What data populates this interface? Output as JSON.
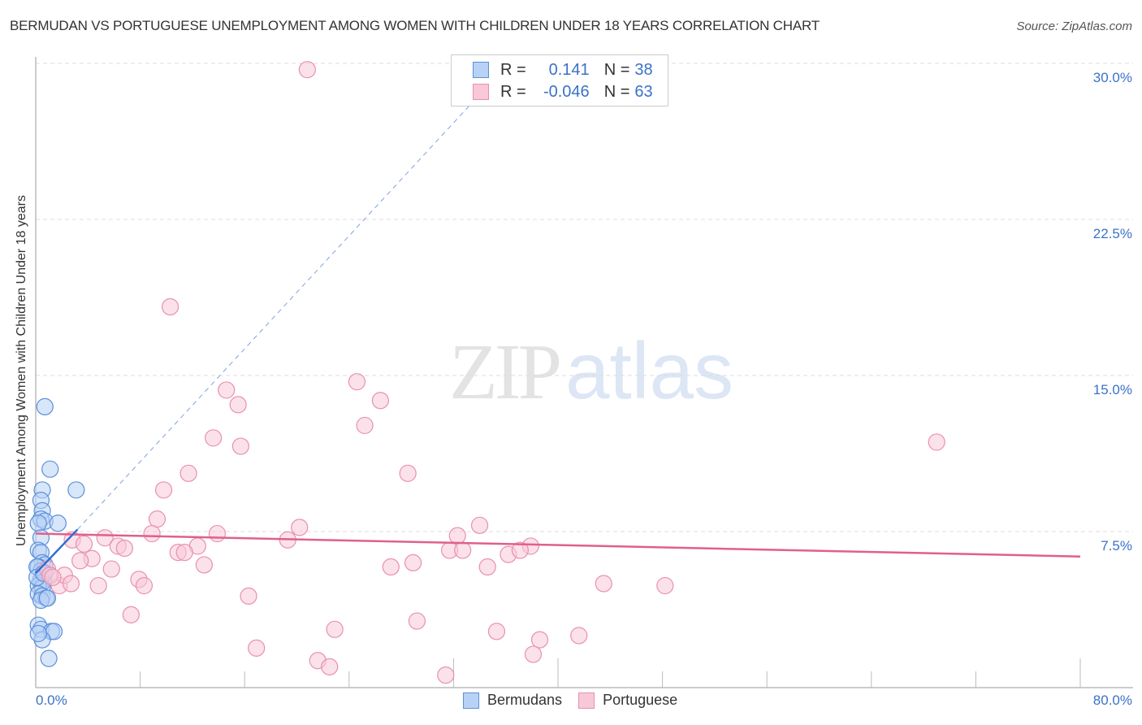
{
  "header": {
    "title": "BERMUDAN VS PORTUGUESE UNEMPLOYMENT AMONG WOMEN WITH CHILDREN UNDER 18 YEARS CORRELATION CHART",
    "source": "Source: ZipAtlas.com"
  },
  "legend_box": {
    "rows": [
      {
        "r_label": "R =",
        "r_value": "0.141",
        "n_label": "N =",
        "n_value": "38"
      },
      {
        "r_label": "R =",
        "r_value": "-0.046",
        "n_label": "N =",
        "n_value": "63"
      }
    ]
  },
  "bottom_legend": {
    "items": [
      {
        "label": "Bermudans"
      },
      {
        "label": "Portuguese"
      }
    ]
  },
  "watermark": {
    "zip": "ZIP",
    "atlas": "atlas"
  },
  "axes": {
    "ylabel": "Unemployment Among Women with Children Under 18 years",
    "yticks": [
      "30.0%",
      "22.5%",
      "15.0%",
      "7.5%"
    ],
    "xticks": [
      "0.0%",
      "80.0%"
    ]
  },
  "colors": {
    "blue_fill": "#b8d2f5",
    "blue_stroke": "#5b8fdb",
    "blue_line": "#2f6fd0",
    "pink_fill": "#f8c8d8",
    "pink_stroke": "#e890ae",
    "pink_line": "#e0608a",
    "tick_text": "#3a72c8"
  },
  "chart_data": {
    "type": "scatter",
    "title": "BERMUDAN VS PORTUGUESE UNEMPLOYMENT AMONG WOMEN WITH CHILDREN UNDER 18 YEARS CORRELATION CHART",
    "xlabel": "",
    "ylabel": "Unemployment Among Women with Children Under 18 years",
    "xlim": [
      0,
      80
    ],
    "ylim": [
      0,
      31
    ],
    "x_ticks": [
      "0.0%",
      "80.0%"
    ],
    "y_ticks": [
      "7.5%",
      "15.0%",
      "22.5%",
      "30.0%"
    ],
    "grid": true,
    "legend_position": "bottom",
    "series": [
      {
        "name": "Bermudans",
        "R": 0.141,
        "N": 38,
        "trend": {
          "x0": 0.0,
          "y0": 5.5,
          "x1": 3.2,
          "y1": 7.6,
          "extended_dashed_to": {
            "x": 34.0,
            "y": 28.5
          }
        },
        "points": [
          [
            0.7,
            13.5
          ],
          [
            1.1,
            10.5
          ],
          [
            0.5,
            9.5
          ],
          [
            3.1,
            9.5
          ],
          [
            0.4,
            9.0
          ],
          [
            0.5,
            8.5
          ],
          [
            0.4,
            8.1
          ],
          [
            0.7,
            8.0
          ],
          [
            1.7,
            7.9
          ],
          [
            0.2,
            7.9
          ],
          [
            0.4,
            7.2
          ],
          [
            0.2,
            6.6
          ],
          [
            0.4,
            6.5
          ],
          [
            0.5,
            6.0
          ],
          [
            0.7,
            5.9
          ],
          [
            0.2,
            5.8
          ],
          [
            0.4,
            5.6
          ],
          [
            0.7,
            5.5
          ],
          [
            0.4,
            5.2
          ],
          [
            0.6,
            5.1
          ],
          [
            0.4,
            5.0
          ],
          [
            0.2,
            4.9
          ],
          [
            0.5,
            4.8
          ],
          [
            0.2,
            4.5
          ],
          [
            0.5,
            4.4
          ],
          [
            0.8,
            4.3
          ],
          [
            0.4,
            4.2
          ],
          [
            0.2,
            3.0
          ],
          [
            0.4,
            2.8
          ],
          [
            1.2,
            2.7
          ],
          [
            1.4,
            2.7
          ],
          [
            0.5,
            2.3
          ],
          [
            1.0,
            1.4
          ],
          [
            0.1,
            5.8
          ],
          [
            0.1,
            5.3
          ],
          [
            0.9,
            4.3
          ],
          [
            0.2,
            2.6
          ],
          [
            0.6,
            5.5
          ]
        ]
      },
      {
        "name": "Portuguese",
        "R": -0.046,
        "N": 63,
        "trend": {
          "x0": 0.0,
          "y0": 7.4,
          "x1": 80.0,
          "y1": 6.3
        },
        "points": [
          [
            20.8,
            29.7
          ],
          [
            10.3,
            18.3
          ],
          [
            24.6,
            14.7
          ],
          [
            14.6,
            14.3
          ],
          [
            15.5,
            13.6
          ],
          [
            26.4,
            13.8
          ],
          [
            25.2,
            12.6
          ],
          [
            13.6,
            12.0
          ],
          [
            15.7,
            11.6
          ],
          [
            69.0,
            11.8
          ],
          [
            28.5,
            10.3
          ],
          [
            11.7,
            10.3
          ],
          [
            9.8,
            9.5
          ],
          [
            9.3,
            8.1
          ],
          [
            20.2,
            7.7
          ],
          [
            34.0,
            7.8
          ],
          [
            32.3,
            7.3
          ],
          [
            8.9,
            7.4
          ],
          [
            13.9,
            7.4
          ],
          [
            5.3,
            7.2
          ],
          [
            2.8,
            7.1
          ],
          [
            37.9,
            6.8
          ],
          [
            19.3,
            7.1
          ],
          [
            6.3,
            6.8
          ],
          [
            6.8,
            6.7
          ],
          [
            12.4,
            6.8
          ],
          [
            3.7,
            6.9
          ],
          [
            10.9,
            6.5
          ],
          [
            11.4,
            6.5
          ],
          [
            31.7,
            6.6
          ],
          [
            32.7,
            6.6
          ],
          [
            36.2,
            6.4
          ],
          [
            37.1,
            6.6
          ],
          [
            4.3,
            6.2
          ],
          [
            3.4,
            6.1
          ],
          [
            12.9,
            5.9
          ],
          [
            27.2,
            5.8
          ],
          [
            28.9,
            6.0
          ],
          [
            34.6,
            5.8
          ],
          [
            5.8,
            5.7
          ],
          [
            7.9,
            5.2
          ],
          [
            8.3,
            4.9
          ],
          [
            4.8,
            4.9
          ],
          [
            1.8,
            4.9
          ],
          [
            2.2,
            5.4
          ],
          [
            43.5,
            5.0
          ],
          [
            48.2,
            4.9
          ],
          [
            0.9,
            5.7
          ],
          [
            1.1,
            5.4
          ],
          [
            16.3,
            4.4
          ],
          [
            7.3,
            3.5
          ],
          [
            29.2,
            3.2
          ],
          [
            22.9,
            2.8
          ],
          [
            35.3,
            2.7
          ],
          [
            41.6,
            2.5
          ],
          [
            38.6,
            2.3
          ],
          [
            16.9,
            1.9
          ],
          [
            38.1,
            1.6
          ],
          [
            21.6,
            1.3
          ],
          [
            22.5,
            1.0
          ],
          [
            31.4,
            0.6
          ],
          [
            1.3,
            5.3
          ],
          [
            2.7,
            5.0
          ]
        ]
      }
    ]
  }
}
